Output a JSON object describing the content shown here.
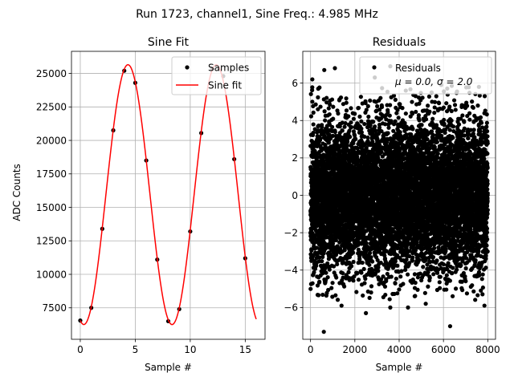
{
  "figure": {
    "suptitle": "Run 1723, channel1, Sine Freq.: 4.985 MHz"
  },
  "chart_data": [
    {
      "type": "scatter",
      "title": "Sine Fit",
      "xlabel": "Sample #",
      "ylabel": "ADC Counts",
      "xlim": [
        -0.8,
        16.8
      ],
      "ylim": [
        5150,
        26650
      ],
      "xticks": [
        0,
        5,
        10,
        15
      ],
      "yticks": [
        7500,
        10000,
        12500,
        15000,
        17500,
        20000,
        22500,
        25000
      ],
      "xtick_labels": [
        "0",
        "5",
        "10",
        "15"
      ],
      "ytick_labels": [
        "7500",
        "10000",
        "12500",
        "15000",
        "17500",
        "20000",
        "22500",
        "25000"
      ],
      "grid": true,
      "legend_position": "top-right",
      "series": [
        {
          "name": "Samples",
          "kind": "points",
          "color": "#000000",
          "x": [
            0,
            1,
            2,
            3,
            4,
            5,
            6,
            7,
            8,
            9,
            10,
            11,
            12,
            13,
            14,
            15
          ],
          "y": [
            6550,
            7500,
            13400,
            20750,
            25200,
            24300,
            18500,
            11100,
            6500,
            7400,
            13200,
            20550,
            25350,
            24800,
            18600,
            11200
          ]
        },
        {
          "name": "Sine fit",
          "kind": "line",
          "color": "#ff0000",
          "model": {
            "offset": 15950,
            "amplitude": 9700,
            "period": 8.022,
            "phase_x": 2.33,
            "x_range": [
              0,
              16
            ]
          }
        }
      ]
    },
    {
      "type": "scatter",
      "title": "Residuals",
      "xlabel": "Sample #",
      "ylabel": "",
      "xlim": [
        -350,
        8350
      ],
      "ylim": [
        -7.7,
        7.7
      ],
      "xticks": [
        0,
        2000,
        4000,
        6000,
        8000
      ],
      "yticks": [
        -6,
        -4,
        -2,
        0,
        2,
        4,
        6
      ],
      "xtick_labels": [
        "0",
        "2000",
        "4000",
        "6000",
        "8000"
      ],
      "ytick_labels": [
        "−6",
        "−4",
        "−2",
        "0",
        "2",
        "4",
        "6"
      ],
      "grid": true,
      "legend_position": "top-right",
      "legend_lines": [
        "Residuals",
        "μ = 0.0, σ = 2.0"
      ],
      "series": [
        {
          "name": "Residuals",
          "kind": "points",
          "color": "#000000",
          "distribution": {
            "count": 8000,
            "mean": 0.0,
            "std": 2.0,
            "x_range": [
              0,
              7999
            ]
          },
          "outliers": [
            {
              "x": 80,
              "y": 6.2
            },
            {
              "x": 620,
              "y": 6.7
            },
            {
              "x": 1100,
              "y": 6.8
            },
            {
              "x": 2900,
              "y": 6.3
            },
            {
              "x": 3600,
              "y": 6.9
            },
            {
              "x": 600,
              "y": -7.3
            },
            {
              "x": 6300,
              "y": -7.0
            },
            {
              "x": 7850,
              "y": -5.9
            },
            {
              "x": 4400,
              "y": -6.0
            },
            {
              "x": 1400,
              "y": -5.9
            },
            {
              "x": 2500,
              "y": -6.3
            },
            {
              "x": 5200,
              "y": -5.8
            },
            {
              "x": 7600,
              "y": 5.8
            },
            {
              "x": 4300,
              "y": 5.6
            },
            {
              "x": 3600,
              "y": -6.0
            },
            {
              "x": 5900,
              "y": 5.9
            }
          ]
        }
      ]
    }
  ]
}
